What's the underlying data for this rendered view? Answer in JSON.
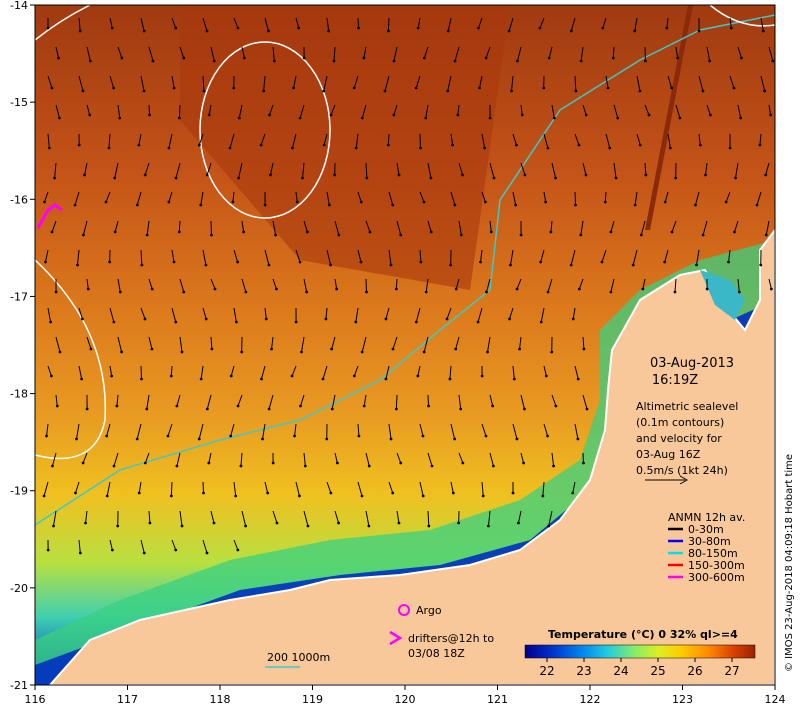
{
  "map": {
    "lon_ticks": [
      "116",
      "117",
      "118",
      "119",
      "120",
      "121",
      "122",
      "123",
      "124"
    ],
    "lat_ticks": [
      "-14",
      "-15",
      "-16",
      "-17",
      "-18",
      "-19",
      "-20",
      "-21"
    ],
    "lon_range": [
      116,
      124
    ],
    "lat_range": [
      -21,
      -14
    ],
    "date": "03-Aug-2013",
    "time": "16:19Z",
    "altimetry_note": [
      "Altimetric sealevel",
      "(0.1m contours)",
      "and velocity for",
      "03-Aug 16Z",
      "0.5m/s (1kt 24h)"
    ],
    "side_credit": "© IMOS 23-Aug-2018 04:09:18 Hobart time",
    "bathymetry_label": "200   1000m",
    "argo_label": "Argo",
    "drifters_label": [
      "drifters@12h to",
      "03/08 18Z"
    ],
    "anmn": {
      "title": "ANMN 12h av.",
      "items": [
        {
          "label": "0-30m",
          "color": "#000000"
        },
        {
          "label": "30-80m",
          "color": "#0000ff"
        },
        {
          "label": "80-150m",
          "color": "#00e0e0"
        },
        {
          "label": "150-300m",
          "color": "#ff0000"
        },
        {
          "label": "300-600m",
          "color": "#ff00ff"
        }
      ]
    },
    "colorbar": {
      "title": "Temperature (°C) 0 32% ql>=4",
      "ticks": [
        "22",
        "23",
        "24",
        "25",
        "26",
        "27"
      ],
      "colors": [
        "#00008b",
        "#0033cc",
        "#0088ee",
        "#22ccdd",
        "#88ee66",
        "#ddee22",
        "#ffcc00",
        "#ff8800",
        "#dd4400",
        "#992200"
      ]
    },
    "colors": {
      "land": "#f8c89a",
      "coast": "#ffffff",
      "isobath": "#40c8c8",
      "sealevel_contour": "#ffffff",
      "argo": "#ff00ff"
    }
  }
}
